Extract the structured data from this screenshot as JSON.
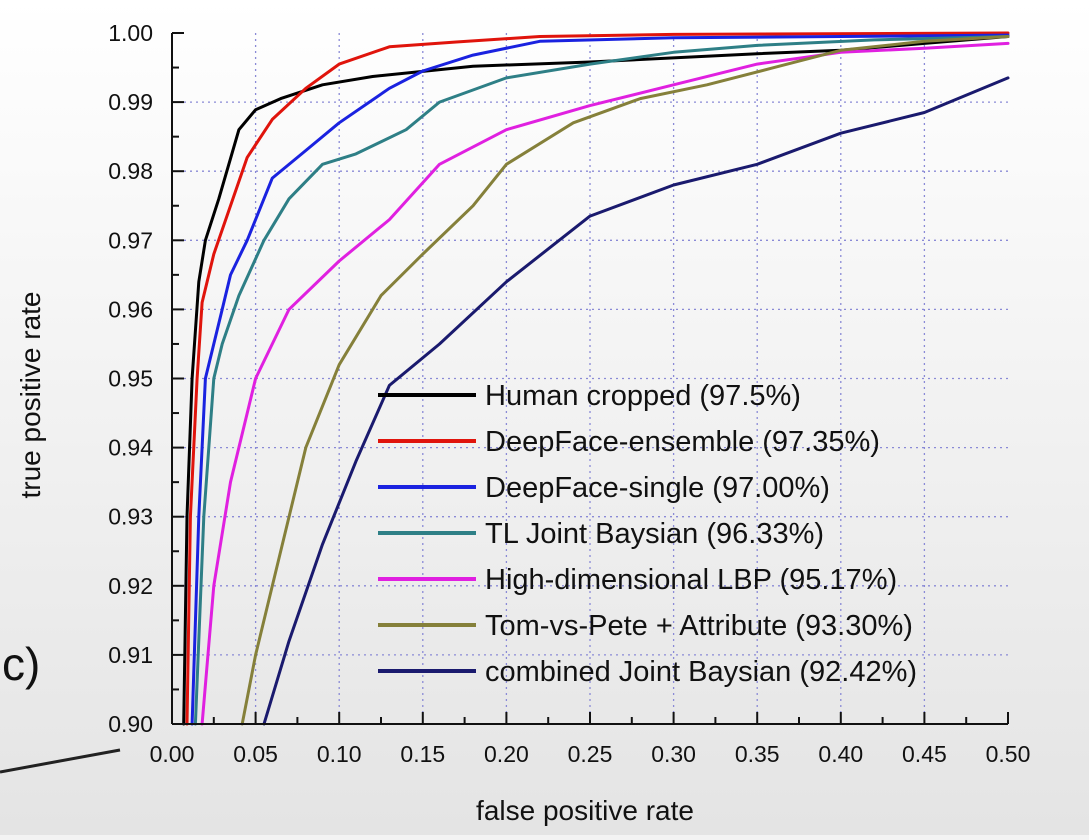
{
  "chart_data": {
    "type": "line",
    "xlabel": "false positive rate",
    "ylabel": "true positive rate",
    "xlim": [
      0.0,
      0.5
    ],
    "ylim": [
      0.9,
      1.0
    ],
    "xticks": [
      "0.00",
      "0.05",
      "0.10",
      "0.15",
      "0.20",
      "0.25",
      "0.30",
      "0.35",
      "0.40",
      "0.45",
      "0.50"
    ],
    "yticks": [
      "0.90",
      "0.91",
      "0.92",
      "0.93",
      "0.94",
      "0.95",
      "0.96",
      "0.97",
      "0.98",
      "0.99",
      "1.00"
    ],
    "grid": true,
    "legend_position": "lower-right",
    "panel_label": "c)",
    "series": [
      {
        "name": "Human cropped (97.5%)",
        "color": "#000000",
        "points": [
          [
            0.007,
            0.9
          ],
          [
            0.009,
            0.93
          ],
          [
            0.012,
            0.95
          ],
          [
            0.016,
            0.964
          ],
          [
            0.02,
            0.97
          ],
          [
            0.028,
            0.976
          ],
          [
            0.04,
            0.986
          ],
          [
            0.05,
            0.9889
          ],
          [
            0.065,
            0.9905
          ],
          [
            0.09,
            0.9925
          ],
          [
            0.12,
            0.9937
          ],
          [
            0.18,
            0.9952
          ],
          [
            0.25,
            0.9958
          ],
          [
            0.35,
            0.997
          ],
          [
            0.4,
            0.9975
          ],
          [
            0.45,
            0.9985
          ],
          [
            0.5,
            0.9995
          ]
        ]
      },
      {
        "name": "DeepFace-ensemble (97.35%)",
        "color": "#e0140c",
        "points": [
          [
            0.009,
            0.9
          ],
          [
            0.011,
            0.93
          ],
          [
            0.015,
            0.95
          ],
          [
            0.018,
            0.961
          ],
          [
            0.025,
            0.968
          ],
          [
            0.035,
            0.975
          ],
          [
            0.045,
            0.982
          ],
          [
            0.06,
            0.9875
          ],
          [
            0.08,
            0.992
          ],
          [
            0.1,
            0.9955
          ],
          [
            0.13,
            0.998
          ],
          [
            0.17,
            0.9987
          ],
          [
            0.22,
            0.9995
          ],
          [
            0.3,
            0.9998
          ],
          [
            0.5,
            1.0
          ]
        ]
      },
      {
        "name": "DeepFace-single (97.00%)",
        "color": "#1a22e0",
        "points": [
          [
            0.012,
            0.9
          ],
          [
            0.016,
            0.93
          ],
          [
            0.02,
            0.95
          ],
          [
            0.03,
            0.96
          ],
          [
            0.035,
            0.965
          ],
          [
            0.045,
            0.97
          ],
          [
            0.06,
            0.979
          ],
          [
            0.08,
            0.983
          ],
          [
            0.1,
            0.987
          ],
          [
            0.13,
            0.992
          ],
          [
            0.15,
            0.9945
          ],
          [
            0.18,
            0.9968
          ],
          [
            0.22,
            0.9988
          ],
          [
            0.3,
            0.9993
          ],
          [
            0.4,
            0.9995
          ],
          [
            0.5,
            0.9997
          ]
        ]
      },
      {
        "name": "TL Joint Baysian (96.33%)",
        "color": "#2e7f86",
        "points": [
          [
            0.014,
            0.9
          ],
          [
            0.019,
            0.93
          ],
          [
            0.025,
            0.95
          ],
          [
            0.03,
            0.955
          ],
          [
            0.04,
            0.962
          ],
          [
            0.055,
            0.97
          ],
          [
            0.07,
            0.976
          ],
          [
            0.09,
            0.981
          ],
          [
            0.11,
            0.9825
          ],
          [
            0.14,
            0.986
          ],
          [
            0.16,
            0.99
          ],
          [
            0.2,
            0.9935
          ],
          [
            0.25,
            0.9955
          ],
          [
            0.3,
            0.9972
          ],
          [
            0.35,
            0.9982
          ],
          [
            0.42,
            0.999
          ],
          [
            0.5,
            0.9995
          ]
        ]
      },
      {
        "name": "High-dimensional LBP (95.17%)",
        "color": "#e020e0",
        "points": [
          [
            0.018,
            0.9
          ],
          [
            0.025,
            0.92
          ],
          [
            0.035,
            0.935
          ],
          [
            0.05,
            0.95
          ],
          [
            0.07,
            0.96
          ],
          [
            0.1,
            0.967
          ],
          [
            0.13,
            0.973
          ],
          [
            0.16,
            0.981
          ],
          [
            0.2,
            0.986
          ],
          [
            0.25,
            0.9895
          ],
          [
            0.3,
            0.9925
          ],
          [
            0.35,
            0.9955
          ],
          [
            0.4,
            0.9972
          ],
          [
            0.45,
            0.9978
          ],
          [
            0.5,
            0.9985
          ]
        ]
      },
      {
        "name": "Tom-vs-Pete + Attribute (93.30%)",
        "color": "#85803a",
        "points": [
          [
            0.042,
            0.9
          ],
          [
            0.05,
            0.91
          ],
          [
            0.065,
            0.925
          ],
          [
            0.08,
            0.94
          ],
          [
            0.1,
            0.952
          ],
          [
            0.125,
            0.962
          ],
          [
            0.15,
            0.968
          ],
          [
            0.18,
            0.975
          ],
          [
            0.2,
            0.981
          ],
          [
            0.24,
            0.987
          ],
          [
            0.28,
            0.9905
          ],
          [
            0.32,
            0.9925
          ],
          [
            0.36,
            0.995
          ],
          [
            0.4,
            0.9975
          ],
          [
            0.45,
            0.9988
          ],
          [
            0.5,
            0.9995
          ]
        ]
      },
      {
        "name": "combined Joint Baysian (92.42%)",
        "color": "#1a1a6e",
        "points": [
          [
            0.055,
            0.9
          ],
          [
            0.07,
            0.912
          ],
          [
            0.09,
            0.926
          ],
          [
            0.11,
            0.938
          ],
          [
            0.13,
            0.949
          ],
          [
            0.16,
            0.955
          ],
          [
            0.2,
            0.964
          ],
          [
            0.25,
            0.9735
          ],
          [
            0.3,
            0.978
          ],
          [
            0.35,
            0.981
          ],
          [
            0.4,
            0.9855
          ],
          [
            0.45,
            0.9885
          ],
          [
            0.5,
            0.9935
          ]
        ]
      }
    ]
  }
}
